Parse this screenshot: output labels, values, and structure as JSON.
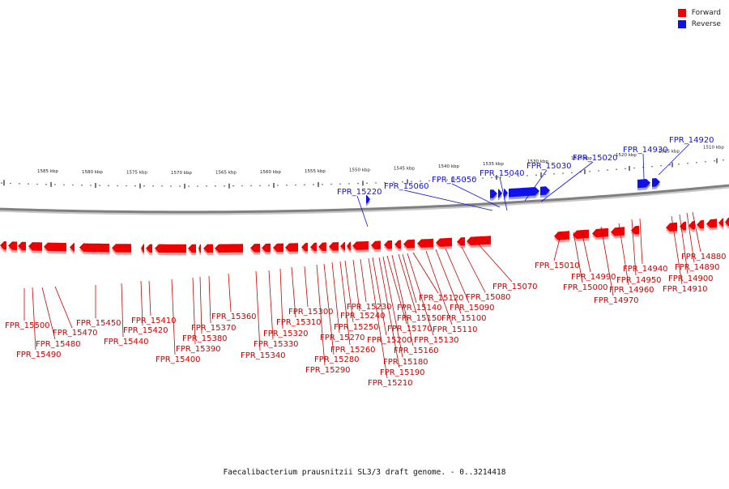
{
  "title": "Faecalibacterium prausnitzii SL3/3 draft genome. - 0..3214418",
  "legend": {
    "forward_label": "Forward",
    "reverse_label": "Reverse"
  },
  "colors": {
    "forward": "#ee0000",
    "reverse": "#1010ee",
    "backbone": "#808080"
  },
  "scale_ticks": [
    "1510 kbp",
    "1515 kbp",
    "1520 kbp",
    "1525 kbp",
    "1530 kbp",
    "1535 kbp",
    "1540 kbp",
    "1545 kbp",
    "1550 kbp",
    "1555 kbp",
    "1560 kbp",
    "1565 kbp",
    "1570 kbp",
    "1575 kbp",
    "1580 kbp",
    "1585 kbp"
  ],
  "forward_genes": [
    "FPR_14880",
    "FPR_14890",
    "FPR_14900",
    "FPR_14910",
    "FPR_14940",
    "FPR_14950",
    "FPR_14960",
    "FPR_14970",
    "FPR_14990",
    "FPR_15000",
    "FPR_15010",
    "FPR_15070",
    "FPR_15080",
    "FPR_15090",
    "FPR_15100",
    "FPR_15110",
    "FPR_15120",
    "FPR_15130",
    "FPR_15140",
    "FPR_15150",
    "FPR_15160",
    "FPR_15170",
    "FPR_15180",
    "FPR_15190",
    "FPR_15200",
    "FPR_15210",
    "FPR_15230",
    "FPR_15240",
    "FPR_15250",
    "FPR_15260",
    "FPR_15270",
    "FPR_15280",
    "FPR_15290",
    "FPR_15300",
    "FPR_15310",
    "FPR_15320",
    "FPR_15330",
    "FPR_15340",
    "FPR_15360",
    "FPR_15370",
    "FPR_15380",
    "FPR_15390",
    "FPR_15400",
    "FPR_15410",
    "FPR_15420",
    "FPR_15440",
    "FPR_15450",
    "FPR_15470",
    "FPR_15480",
    "FPR_15490",
    "FPR_15500"
  ],
  "reverse_genes": [
    "FPR_14920",
    "FPR_14930",
    "FPR_15020",
    "FPR_15030",
    "FPR_15040",
    "FPR_15050",
    "FPR_15060",
    "FPR_15220"
  ]
}
